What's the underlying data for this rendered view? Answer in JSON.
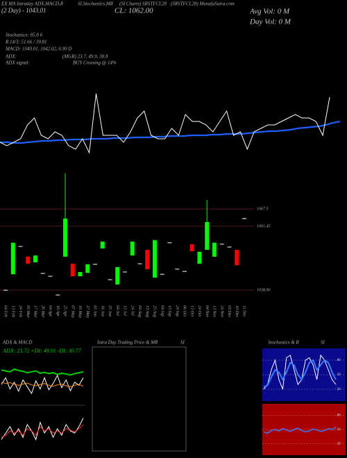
{
  "header": {
    "line1": [
      "EX MA Intraday ADX,MACD,R",
      "SI,Stochastics,MR",
      "(SI Charts) SRSTFCL28",
      "(SRSTFCL28) MunafaSutra.com"
    ],
    "two_day": "(2 Day) - 1043.01",
    "close": "CL: 1062.00",
    "avg_vol": "Avg Vol: 0  M",
    "day_vol": "Day Vol: 0  M",
    "stochastics": "Stochastics: 85.8    6",
    "rsi": "R 14/3: 51.66 / 39.81",
    "macd": "MACD: 1049.01, 1042.02, 6.99 D",
    "adx_label": "ADX:",
    "adx_value": "(MGR) 23.7, 49.9, 30.8",
    "signal_label": "ADX  signal:",
    "signal_value": "BUY Crossing @ 14%"
  },
  "main": {
    "line": {
      "ylim": [
        0,
        95
      ],
      "price_color": "#ffffff",
      "ma_color": "#1e5fff",
      "values": [
        20,
        15,
        20,
        25,
        45,
        55,
        30,
        25,
        35,
        30,
        15,
        10,
        25,
        5,
        90,
        30,
        30,
        30,
        20,
        35,
        55,
        65,
        30,
        25,
        25,
        40,
        30,
        60,
        50,
        50,
        45,
        35,
        50,
        65,
        30,
        35,
        10,
        35,
        40,
        45,
        45,
        50,
        55,
        60,
        55,
        55,
        50,
        30,
        85
      ],
      "ma": [
        20,
        20,
        19,
        19,
        20,
        21,
        22,
        22,
        23,
        23,
        24,
        24,
        24,
        25,
        25,
        25,
        26,
        26,
        26,
        27,
        27,
        27,
        28,
        28,
        29,
        29,
        29,
        30,
        30,
        30,
        31,
        31,
        32,
        32,
        32,
        33,
        34,
        35,
        36,
        36,
        37,
        38,
        40,
        41,
        42,
        43,
        45,
        48,
        50
      ]
    },
    "candles": {
      "ylim": [
        1036,
        1080
      ],
      "yticks": [
        1067.5,
        1061.45,
        {
          "value": 1038.9,
          "label": "1038.90"
        }
      ],
      "up_color": "#00ff00",
      "down_color": "#ff0000",
      "flat_color": "#ffffff",
      "dates": [
        "04 Feb",
        "13 Feb",
        "24 Feb",
        "05 Mar",
        "17 Mar",
        "26 Mar",
        "04 Apr",
        "16 Apr",
        "25 Apr",
        "07 May",
        "16 May",
        "27 May",
        "05 Jun",
        "16 Jun",
        "25 Jun",
        "04 Jul",
        "15 Jul",
        "24 Jul",
        "04 Aug",
        "13 Aug",
        "25 Aug",
        "04 Sep",
        "15 Sep",
        "24 Sep",
        "06 Oct",
        "15 Oct",
        "24 Oct",
        "04 Nov",
        "13 Nov",
        "24 Nov",
        "03 Dec",
        "10 Dec",
        "11 Dec"
      ],
      "open": [
        1038.9,
        1044.5,
        1054.3,
        1050.7,
        1048.7,
        1044.8,
        1043.8,
        1037.2,
        1050.7,
        1048.2,
        1043.8,
        1045.0,
        1048.0,
        1053.6,
        1042.6,
        1040.9,
        1045.3,
        1051.1,
        1048.2,
        1053.1,
        1043.3,
        1044.5,
        1055.6,
        1046.3,
        1045.5,
        1055.1,
        1048.2,
        1053.1,
        1050.7,
        1055.1,
        1054.1,
        1053.1,
        1064.1
      ],
      "high": [
        1038.9,
        1055.6,
        1054.3,
        1050.7,
        1051.1,
        1044.8,
        1043.8,
        1037.2,
        1080.0,
        1048.2,
        1045.3,
        1048.0,
        1048.0,
        1056.0,
        1042.6,
        1047.0,
        1045.3,
        1056.0,
        1048.2,
        1053.1,
        1056.5,
        1044.5,
        1055.6,
        1046.3,
        1045.5,
        1055.1,
        1052.4,
        1070.7,
        1055.6,
        1055.1,
        1054.1,
        1053.1,
        1064.1
      ],
      "low": [
        1038.9,
        1044.5,
        1054.3,
        1048.2,
        1048.7,
        1044.8,
        1043.8,
        1037.2,
        1050.7,
        1043.8,
        1043.8,
        1045.0,
        1048.0,
        1053.6,
        1042.6,
        1040.9,
        1045.3,
        1051.1,
        1048.2,
        1046.3,
        1043.3,
        1044.5,
        1055.6,
        1046.3,
        1045.5,
        1052.6,
        1048.2,
        1053.1,
        1050.7,
        1055.1,
        1054.1,
        1047.7,
        1064.1
      ],
      "close": [
        1038.9,
        1055.6,
        1054.3,
        1048.2,
        1051.1,
        1044.8,
        1043.8,
        1037.2,
        1064.1,
        1043.8,
        1045.3,
        1048.0,
        1048.0,
        1056.0,
        1042.6,
        1047.0,
        1045.3,
        1056.0,
        1048.2,
        1046.3,
        1056.5,
        1044.5,
        1055.6,
        1046.3,
        1045.5,
        1052.6,
        1052.4,
        1062.9,
        1055.6,
        1055.1,
        1054.1,
        1047.7,
        1064.1
      ]
    }
  },
  "adx_panel": {
    "title": "ADX  & MACD",
    "readout": "ADX: 23.72  +DI: 49.91  -DI: 30.77",
    "ylim": [
      0,
      100
    ],
    "adx": {
      "series": [
        {
          "color": "#00d000",
          "values": [
            72,
            70,
            68,
            74,
            71,
            69,
            66,
            68,
            70,
            65,
            67,
            64,
            66,
            62,
            65,
            63,
            61,
            64,
            66,
            68
          ]
        },
        {
          "color": "#ffffff",
          "values": [
            40,
            55,
            30,
            45,
            25,
            50,
            35,
            20,
            48,
            30,
            55,
            28,
            42,
            60,
            33,
            50,
            26,
            45,
            38,
            55
          ]
        },
        {
          "color": "#ff8c1a",
          "values": [
            45,
            42,
            44,
            40,
            38,
            41,
            43,
            39,
            37,
            40,
            42,
            38,
            36,
            39,
            41,
            37,
            35,
            38,
            40,
            36
          ]
        }
      ]
    },
    "macd": {
      "series": [
        {
          "color": "#ffffff",
          "values": [
            30,
            45,
            60,
            40,
            55,
            35,
            65,
            50,
            30,
            70,
            45,
            60,
            35,
            55,
            40,
            65,
            50,
            45,
            60,
            80
          ]
        },
        {
          "color": "#ff3030",
          "values": [
            35,
            40,
            50,
            45,
            50,
            40,
            55,
            50,
            40,
            60,
            50,
            55,
            45,
            50,
            45,
            55,
            52,
            48,
            55,
            65
          ]
        }
      ]
    }
  },
  "intraday_panel": {
    "title": "Intra Day Trading Price  & MR",
    "suffix": "SI"
  },
  "stoch_panel": {
    "title": "Stochastics & R",
    "suffix": "SI",
    "ylim": [
      0,
      100
    ],
    "yticks": [
      80,
      50,
      20
    ],
    "stoch_bg": "#0a0a8c",
    "rsi_bg": "#aa0000",
    "stoch": {
      "series": [
        {
          "color": "#ffffff",
          "values": [
            20,
            30,
            60,
            80,
            40,
            20,
            85,
            90,
            60,
            30,
            40,
            80,
            85,
            70,
            40,
            90,
            80,
            60,
            40,
            30
          ]
        },
        {
          "color": "#3a7bff",
          "values": [
            25,
            28,
            45,
            60,
            55,
            40,
            55,
            75,
            70,
            50,
            40,
            55,
            75,
            80,
            60,
            70,
            80,
            75,
            55,
            40
          ]
        }
      ]
    },
    "rsi": {
      "series": [
        {
          "color": "#3a7bff",
          "values": [
            45,
            42,
            48,
            50,
            47,
            52,
            49,
            46,
            50,
            53,
            48,
            45,
            47,
            51,
            49,
            46,
            48,
            52,
            50,
            55
          ]
        }
      ]
    }
  }
}
